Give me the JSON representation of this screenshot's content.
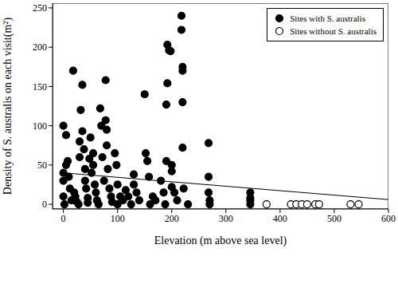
{
  "chart_data": {
    "type": "scatter",
    "x_label": "Elevation (m above sea level)",
    "y_label": "Density of S. australis on each visit(m²)",
    "xlim": [
      -20,
      600
    ],
    "xticks": [
      0,
      100,
      200,
      300,
      400,
      500,
      600
    ],
    "ylim": [
      -6,
      256
    ],
    "yticks": [
      0,
      50,
      100,
      150,
      200,
      250
    ],
    "grid": false,
    "legend": "upper right",
    "series": [
      {
        "name": "Sites with S. australis",
        "color": "#000000",
        "marker": "filled_circle",
        "x": [
          0,
          0,
          0,
          0,
          2,
          5,
          5,
          8,
          10,
          12,
          15,
          18,
          20,
          22,
          25,
          28,
          30,
          30,
          32,
          35,
          35,
          38,
          40,
          40,
          42,
          45,
          45,
          48,
          50,
          52,
          55,
          55,
          58,
          60,
          62,
          65,
          68,
          70,
          72,
          75,
          78,
          78,
          80,
          80,
          82,
          85,
          88,
          90,
          95,
          98,
          100,
          100,
          105,
          110,
          115,
          120,
          125,
          130,
          130,
          135,
          140,
          150,
          152,
          155,
          158,
          160,
          165,
          170,
          180,
          185,
          188,
          190,
          190,
          192,
          192,
          195,
          198,
          200,
          200,
          200,
          205,
          210,
          218,
          218,
          220,
          220,
          220,
          220,
          222,
          230,
          268,
          268,
          268,
          270,
          270,
          345,
          345,
          345,
          345
        ],
        "values": [
          100,
          40,
          30,
          10,
          0,
          88,
          50,
          55,
          35,
          20,
          5,
          170,
          15,
          10,
          3,
          0,
          80,
          60,
          120,
          152,
          93,
          70,
          45,
          30,
          20,
          8,
          2,
          58,
          85,
          40,
          65,
          50,
          25,
          15,
          5,
          0,
          122,
          100,
          60,
          30,
          158,
          107,
          95,
          75,
          45,
          20,
          10,
          3,
          65,
          50,
          0,
          25,
          10,
          5,
          18,
          10,
          0,
          38,
          25,
          15,
          5,
          140,
          65,
          55,
          35,
          0,
          10,
          5,
          30,
          15,
          0,
          55,
          127,
          154,
          203,
          196,
          195,
          50,
          42,
          22,
          15,
          5,
          240,
          222,
          175,
          170,
          130,
          72,
          20,
          0,
          78,
          35,
          15,
          5,
          0,
          15,
          8,
          5,
          0
        ]
      },
      {
        "name": "Sites without S. australis",
        "color": "#000000",
        "marker": "open_circle",
        "x": [
          375,
          420,
          430,
          440,
          450,
          465,
          472,
          530,
          545
        ],
        "values": [
          0,
          0,
          0,
          0,
          0,
          0,
          0,
          0,
          0
        ]
      }
    ],
    "trend_line": {
      "x": [
        0,
        600
      ],
      "values": [
        40,
        6
      ],
      "color": "#000000",
      "line_style": "solid"
    }
  }
}
